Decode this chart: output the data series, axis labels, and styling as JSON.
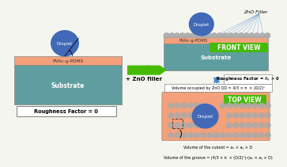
{
  "bg_color": "#f5f5f0",
  "salmon": "#F4A07A",
  "teal": "#5F9EA0",
  "blue_droplet": "#4169B8",
  "green_arrow": "#44BB00",
  "green_label": "#00CC00",
  "gray_dot": "#AAAAAA",
  "blue_arrow": "#4488CC",
  "left_panel": {
    "pvac_label": "PVAc-g-PDMS",
    "substrate_label": "Substrate",
    "droplet_label": "Droplet",
    "rf_label": "Roughness Factor = 0"
  },
  "middle": {
    "plus_label": "+ ZnO filler"
  },
  "right_top": {
    "front_view_label": "FRONT VIEW",
    "pvac_label": "PVAc-g-PDMS",
    "substrate_label": "Substrate",
    "droplet_label": "Droplet",
    "zno_label": "ZnO Filler",
    "rf_label": "Roughness Factor = $R_q$ > 0"
  },
  "right_bottom": {
    "top_view_label": "TOP VIEW",
    "droplet_label": "Droplet",
    "vol_zno": "Volume occupied by ZnO QD = 4/3 × π  × (D/2)³",
    "vol_cuboid": "Volume of the cuboid = aₓ × aᵧ × D",
    "vol_groove": "Volume of the groove = (4/3 × π  × (D/2)³)-(aₓ × aᵧ × D)"
  }
}
